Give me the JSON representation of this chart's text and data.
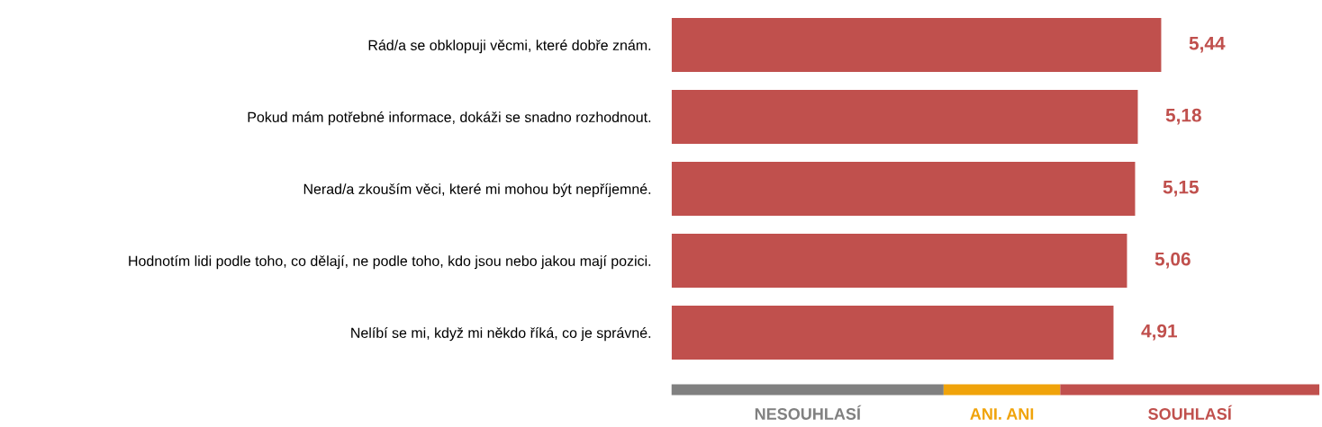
{
  "chart_data": {
    "type": "bar",
    "orientation": "horizontal",
    "categories": [
      "Rád/a se obklopuji věcmi, které dobře znám.",
      "Pokud mám potřebné informace, dokáži se snadno rozhodnout.",
      "Nerad/a zkouším věci, které mi mohou být nepříjemné.",
      "Hodnotím lidi podle toho, co dělají, ne podle toho, kdo jsou nebo jakou mají pozici.",
      "Nelíbí se mi, když mi někdo říká, co je správné."
    ],
    "values": [
      5.44,
      5.18,
      5.15,
      5.06,
      4.91
    ],
    "color": "#c0504d",
    "value_labels": [
      "5,44",
      "5,18",
      "5,15",
      "5,06",
      "4,91"
    ],
    "tick_labels": "y",
    "annotations": [
      "NESOUHLASÍ",
      "ANI. ANI",
      "SOUHLASÍ"
    ]
  }
}
